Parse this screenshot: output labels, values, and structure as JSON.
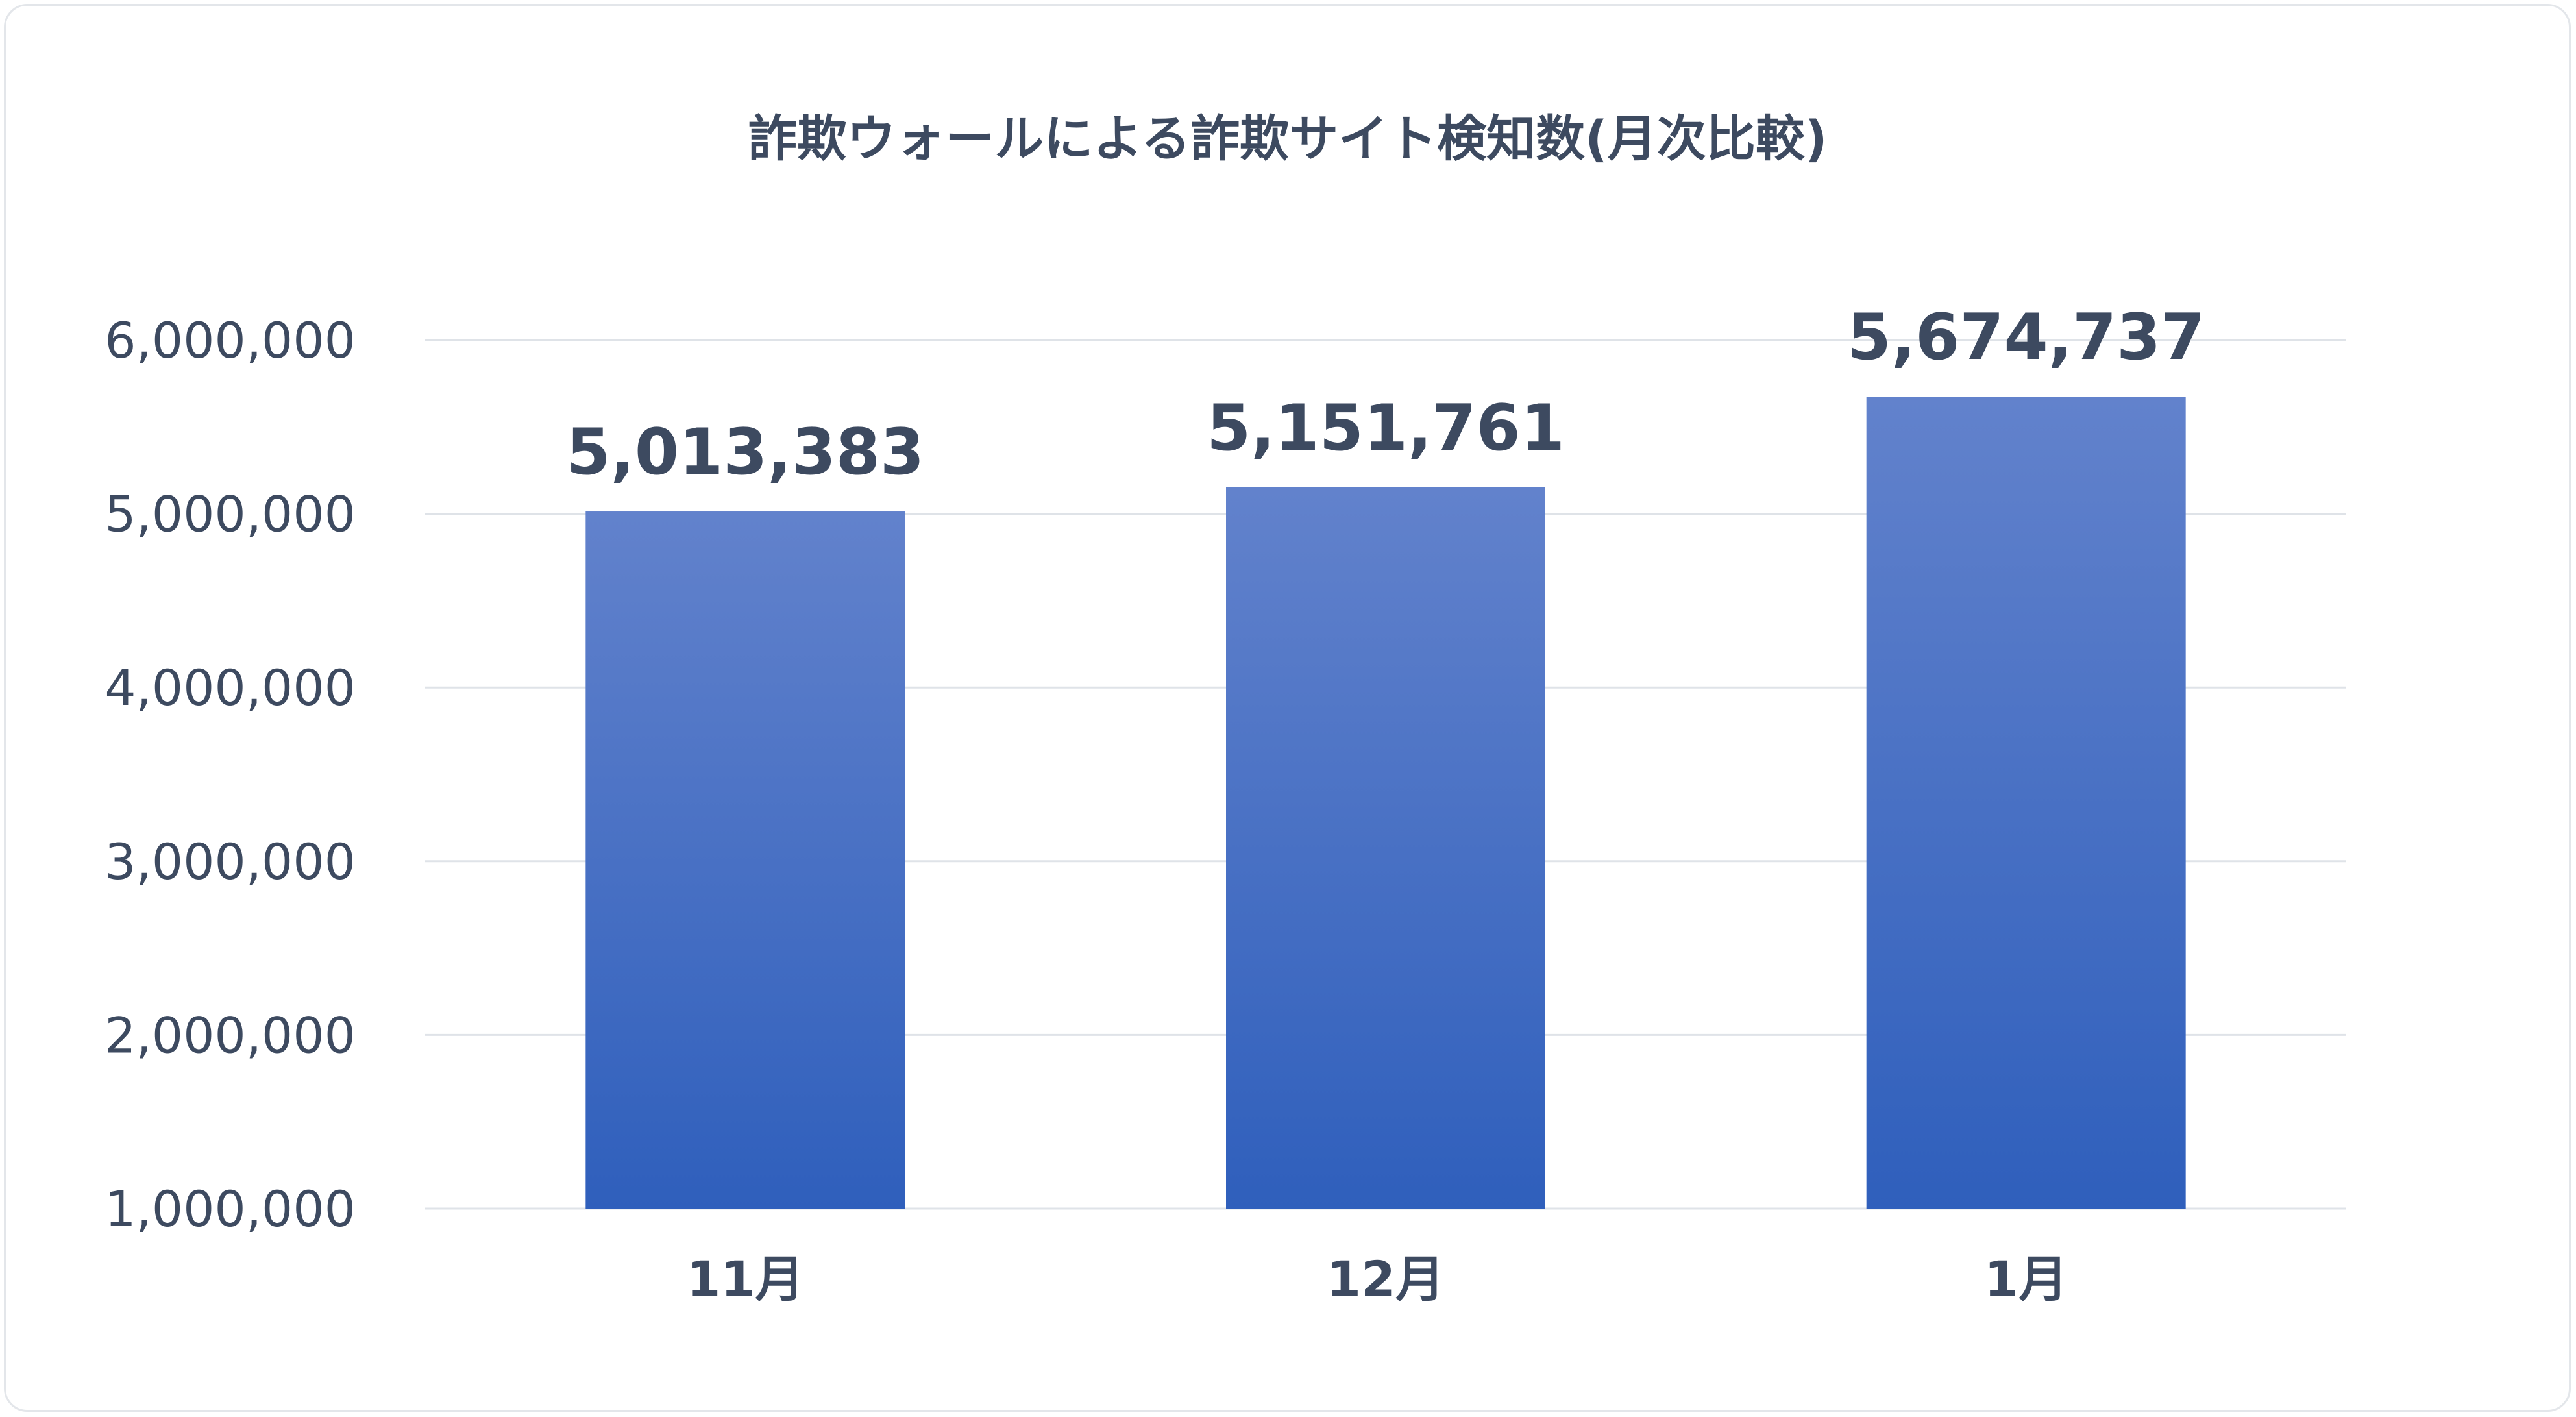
{
  "chart_data": {
    "type": "bar",
    "title": "詐欺ウォールによる詐欺サイト検知数(月次比較)",
    "categories": [
      "11月",
      "12月",
      "1月"
    ],
    "values": [
      5013383,
      5151761,
      5674737
    ],
    "data_labels": [
      "5,013,383",
      "5,151,761",
      "5,674,737"
    ],
    "ylim": [
      1000000,
      6000000
    ],
    "yticks": [
      1000000,
      2000000,
      3000000,
      4000000,
      5000000,
      6000000
    ],
    "ytick_labels": [
      "1,000,000",
      "2,000,000",
      "3,000,000",
      "4,000,000",
      "5,000,000",
      "6,000,000"
    ],
    "grid": true,
    "legend": "none",
    "colors": {
      "bar_top": "#6282cc",
      "bar_bottom": "#2f5fbc",
      "text": "#3d4a60",
      "grid": "#dfe3e8"
    }
  }
}
